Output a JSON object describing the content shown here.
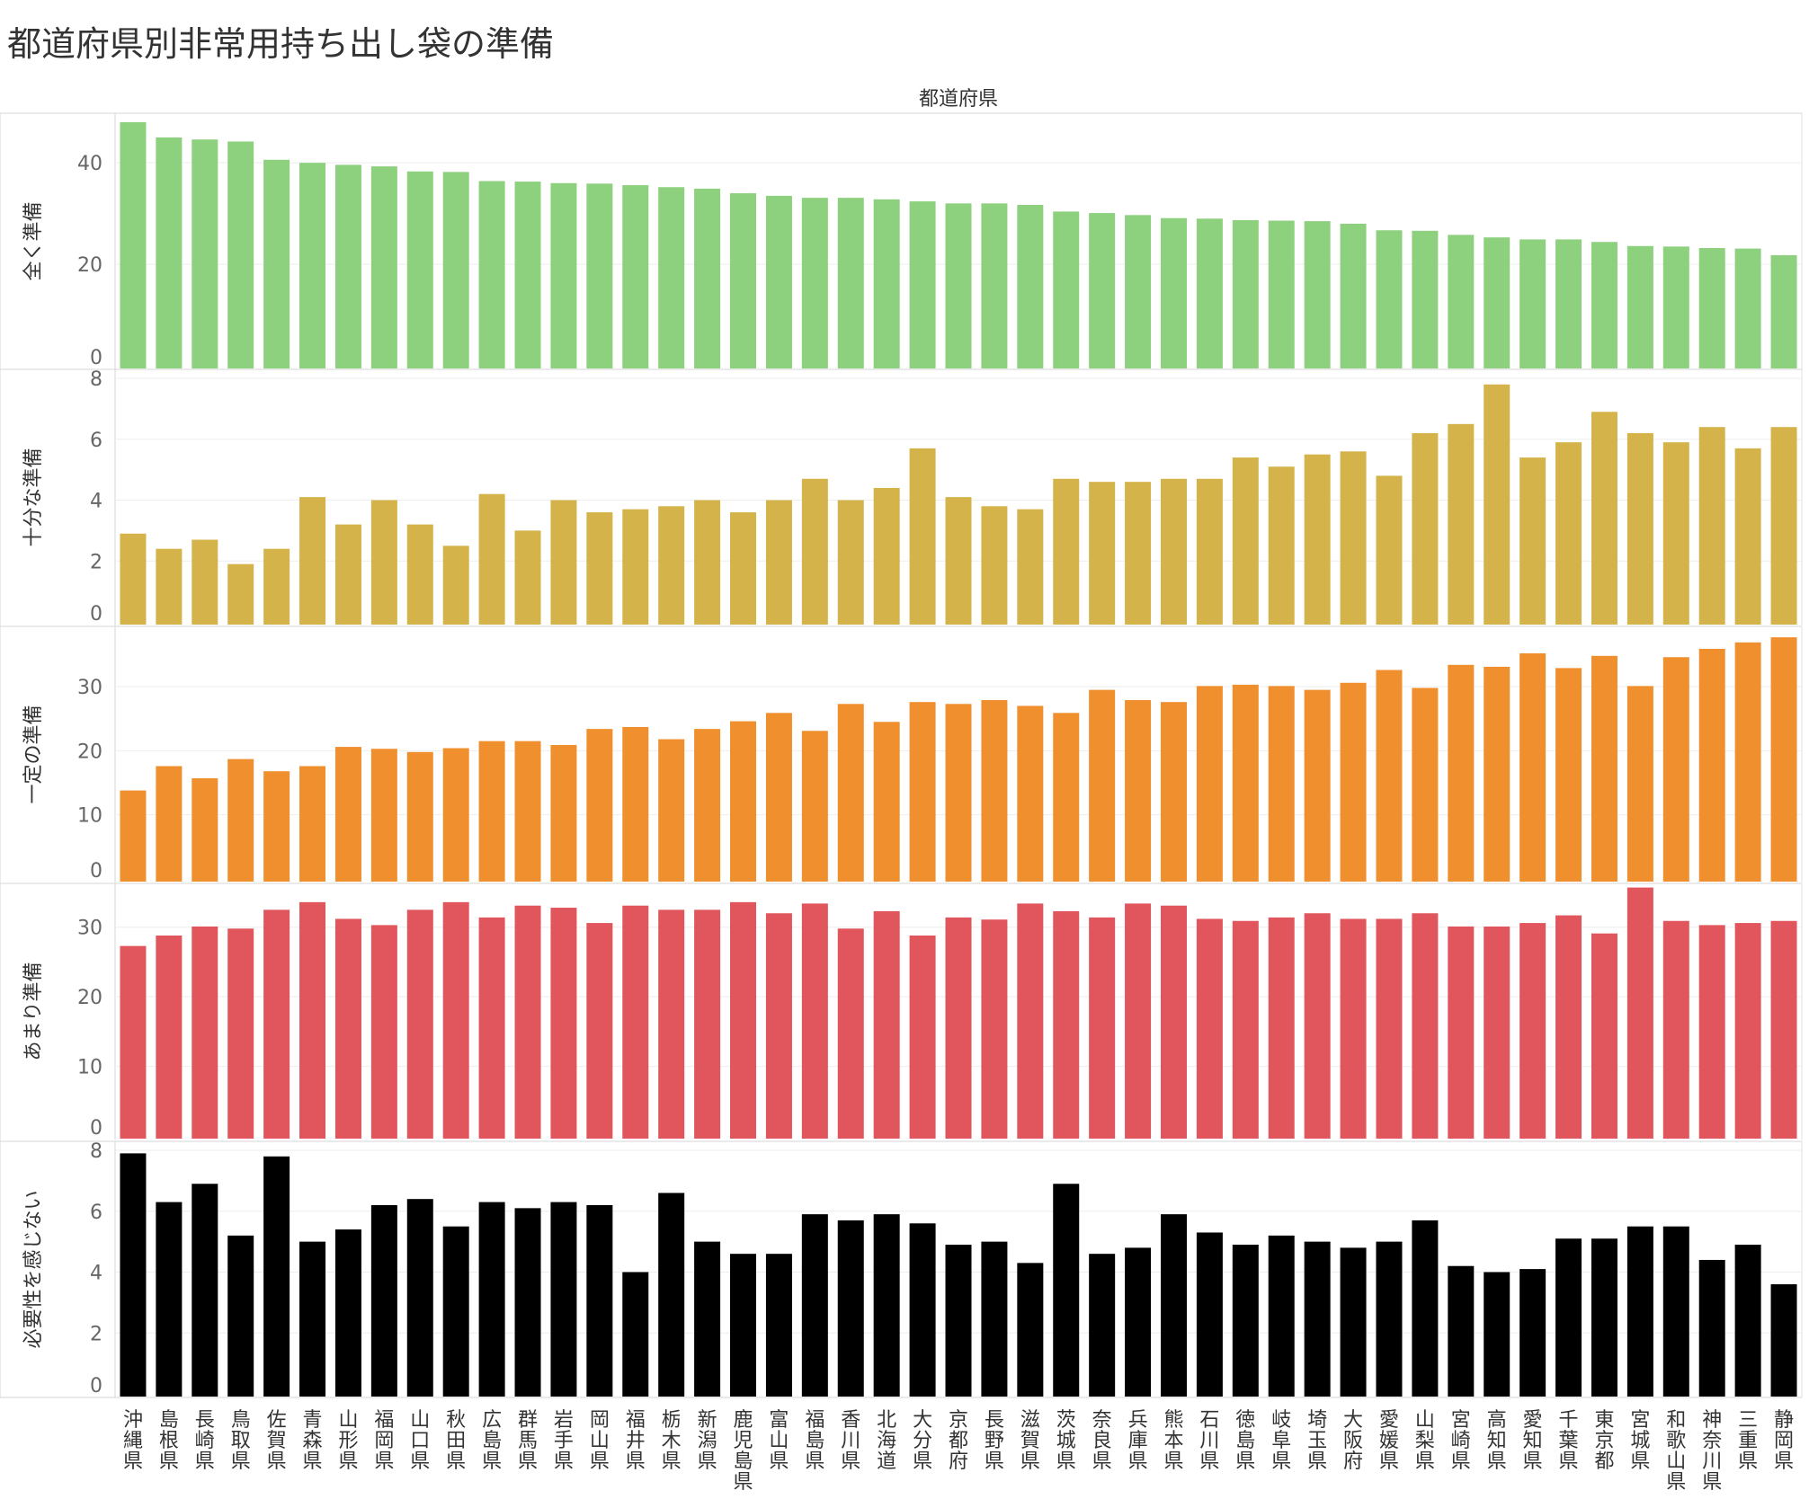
{
  "title": "都道府県別非常用持ち出し袋の準備",
  "column_header": "都道府県",
  "chart_data": {
    "type": "bar",
    "categories": [
      "沖縄県",
      "島根県",
      "長崎県",
      "鳥取県",
      "佐賀県",
      "青森県",
      "山形県",
      "福岡県",
      "山口県",
      "秋田県",
      "広島県",
      "群馬県",
      "岩手県",
      "岡山県",
      "福井県",
      "栃木県",
      "新潟県",
      "鹿児島県",
      "富山県",
      "福島県",
      "香川県",
      "北海道",
      "大分県",
      "京都府",
      "長野県",
      "滋賀県",
      "茨城県",
      "奈良県",
      "兵庫県",
      "熊本県",
      "石川県",
      "徳島県",
      "岐阜県",
      "埼玉県",
      "大阪府",
      "愛媛県",
      "山梨県",
      "宮崎県",
      "高知県",
      "愛知県",
      "千葉県",
      "東京都",
      "宮城県",
      "和歌山県",
      "神奈川県",
      "三重県",
      "静岡県"
    ],
    "series": [
      {
        "name": "全く準備",
        "color": "#8dd17e",
        "ticks": [
          0,
          20,
          40
        ],
        "ylim": [
          0,
          48
        ],
        "values": [
          48,
          45,
          44.6,
          44.2,
          40.6,
          40,
          39.6,
          39.3,
          38.3,
          38.2,
          36.4,
          36.3,
          36,
          35.9,
          35.6,
          35.2,
          34.9,
          34,
          33.5,
          33.1,
          33.1,
          32.8,
          32.4,
          32,
          32,
          31.7,
          30.4,
          30.1,
          29.7,
          29.1,
          29,
          28.7,
          28.6,
          28.5,
          28,
          26.7,
          26.6,
          25.8,
          25.3,
          24.9,
          24.9,
          24.4,
          23.6,
          23.5,
          23.2,
          23.1,
          21.8
        ]
      },
      {
        "name": "十分な準備",
        "color": "#d4b44a",
        "ticks": [
          0,
          2,
          4,
          6,
          8
        ],
        "ylim": [
          0,
          8
        ],
        "values": [
          2.9,
          2.4,
          2.7,
          1.9,
          2.4,
          4.1,
          3.2,
          4,
          3.2,
          2.5,
          4.2,
          3,
          4,
          3.6,
          3.7,
          3.8,
          4,
          3.6,
          4,
          4.7,
          4,
          4.4,
          5.7,
          4.1,
          3.8,
          3.7,
          4.7,
          4.6,
          4.6,
          4.7,
          4.7,
          5.4,
          5.1,
          5.5,
          5.6,
          4.8,
          6.2,
          6.5,
          7.8,
          5.4,
          5.9,
          6.9,
          6.2,
          5.9,
          6.4,
          5.7,
          6.4
        ]
      },
      {
        "name": "一定の準備",
        "color": "#f08f2e",
        "ticks": [
          0,
          10,
          20,
          30
        ],
        "ylim": [
          0,
          38
        ],
        "values": [
          13.8,
          17.6,
          15.7,
          18.7,
          16.8,
          17.6,
          20.6,
          20.3,
          19.8,
          20.4,
          21.5,
          21.5,
          20.9,
          23.4,
          23.7,
          21.8,
          23.4,
          24.6,
          25.9,
          23.1,
          27.3,
          24.5,
          27.6,
          27.3,
          27.9,
          27,
          25.9,
          29.5,
          27.9,
          27.6,
          30.1,
          30.3,
          30.1,
          29.5,
          30.6,
          32.6,
          29.8,
          33.4,
          33.1,
          35.2,
          32.9,
          34.8,
          30.1,
          34.6,
          35.9,
          36.9,
          37.7
        ]
      },
      {
        "name": "あまり準備",
        "color": "#e0565c",
        "ticks": [
          0,
          10,
          20,
          30
        ],
        "ylim": [
          0,
          35
        ],
        "values": [
          27.3,
          28.8,
          30.1,
          29.8,
          32.5,
          33.6,
          31.2,
          30.3,
          32.5,
          33.6,
          31.4,
          33.1,
          32.8,
          30.6,
          33.1,
          32.5,
          32.5,
          33.6,
          32,
          33.4,
          29.8,
          32.3,
          28.8,
          31.4,
          31.1,
          33.4,
          32.3,
          31.4,
          33.4,
          33.1,
          31.2,
          30.9,
          31.4,
          32,
          31.2,
          31.2,
          32,
          30.1,
          30.1,
          30.6,
          31.7,
          29.1,
          35.7,
          30.9,
          30.3,
          30.6,
          30.9
        ]
      },
      {
        "name": "必要性を感じない",
        "color": "#000000",
        "ticks": [
          0,
          2,
          4,
          6,
          8
        ],
        "ylim": [
          0,
          8
        ],
        "values": [
          7.9,
          6.3,
          6.9,
          5.2,
          7.8,
          5,
          5.4,
          6.2,
          6.4,
          5.5,
          6.3,
          6.1,
          6.3,
          6.2,
          4,
          6.6,
          5,
          4.6,
          4.6,
          5.9,
          5.7,
          5.9,
          5.6,
          4.9,
          5,
          4.3,
          6.9,
          4.6,
          4.8,
          5.9,
          5.3,
          4.9,
          5.2,
          5,
          4.8,
          5,
          5.7,
          4.2,
          4,
          4.1,
          5.1,
          5.1,
          5.5,
          5.5,
          4.4,
          4.9,
          3.6
        ]
      }
    ]
  }
}
